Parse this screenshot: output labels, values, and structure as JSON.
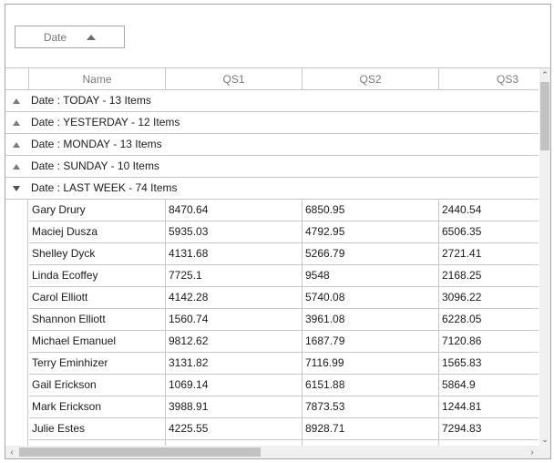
{
  "group_panel": {
    "chip_label": "Date",
    "chip_icon": "sort-ascending-icon"
  },
  "columns": [
    "Name",
    "QS1",
    "QS2",
    "QS3"
  ],
  "groups": [
    {
      "label": "Date : TODAY - 13 Items",
      "expanded": false
    },
    {
      "label": "Date : YESTERDAY - 12 Items",
      "expanded": false
    },
    {
      "label": "Date : MONDAY - 13 Items",
      "expanded": false
    },
    {
      "label": "Date : SUNDAY - 10 Items",
      "expanded": false
    },
    {
      "label": "Date : LAST WEEK - 74 Items",
      "expanded": true
    }
  ],
  "rows": [
    {
      "name": "Gary Drury",
      "qs1": "8470.64",
      "qs2": "6850.95",
      "qs3": "2440.54"
    },
    {
      "name": "Maciej Dusza",
      "qs1": "5935.03",
      "qs2": "4792.95",
      "qs3": "6506.35"
    },
    {
      "name": "Shelley Dyck",
      "qs1": "4131.68",
      "qs2": "5266.79",
      "qs3": "2721.41"
    },
    {
      "name": "Linda Ecoffey",
      "qs1": "7725.1",
      "qs2": "9548",
      "qs3": "2168.25"
    },
    {
      "name": "Carol Elliott",
      "qs1": "4142.28",
      "qs2": "5740.08",
      "qs3": "3096.22"
    },
    {
      "name": "Shannon Elliott",
      "qs1": "1560.74",
      "qs2": "3961.08",
      "qs3": "6228.05"
    },
    {
      "name": "Michael Emanuel",
      "qs1": "9812.62",
      "qs2": "1687.79",
      "qs3": "7120.86"
    },
    {
      "name": "Terry Eminhizer",
      "qs1": "3131.82",
      "qs2": "7116.99",
      "qs3": "1565.83"
    },
    {
      "name": "Gail Erickson",
      "qs1": "1069.14",
      "qs2": "6151.88",
      "qs3": "5864.9"
    },
    {
      "name": "Mark Erickson",
      "qs1": "3988.91",
      "qs2": "7873.53",
      "qs3": "1244.81"
    },
    {
      "name": "Julie Estes",
      "qs1": "4225.55",
      "qs2": "8928.71",
      "qs3": "7294.83"
    },
    {
      "name": "",
      "qs1": "",
      "qs2": "",
      "qs3": ""
    }
  ],
  "scrollbars": {
    "vertical_up": "scroll-up-icon",
    "vertical_down": "scroll-down-icon",
    "horizontal_left": "scroll-left-icon",
    "horizontal_right": "scroll-right-icon"
  }
}
